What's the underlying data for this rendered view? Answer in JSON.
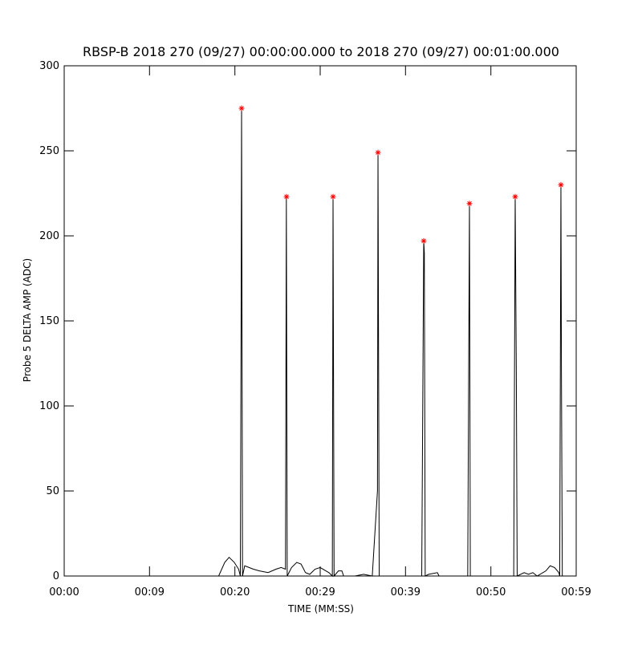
{
  "chart_data": {
    "type": "line",
    "title": "RBSP-B 2018 270 (09/27) 00:00:00.000 to 2018 270 (09/27) 00:01:00.000",
    "xlabel": "TIME (MM:SS)",
    "ylabel": "Probe 5 DELTA AMP (ADC)",
    "xlim": [
      0,
      59
    ],
    "ylim": [
      0,
      300
    ],
    "xticks": [
      {
        "value": 0,
        "label": "00:00"
      },
      {
        "value": 9.83,
        "label": "00:09"
      },
      {
        "value": 19.67,
        "label": "00:20"
      },
      {
        "value": 29.5,
        "label": "00:29"
      },
      {
        "value": 39.33,
        "label": "00:39"
      },
      {
        "value": 49.17,
        "label": "00:50"
      },
      {
        "value": 59,
        "label": "00:59"
      }
    ],
    "yticks": [
      0,
      50,
      100,
      150,
      200,
      250,
      300
    ],
    "series": [
      {
        "kind": "line",
        "color": "#000000",
        "x": [
          0,
          17.8,
          18.5,
          19.0,
          19.6,
          20.1,
          20.3,
          20.4,
          20.44,
          20.55,
          20.8,
          21.3,
          21.8,
          22.5,
          23.5,
          24.4,
          25.0,
          25.5,
          25.6,
          25.7,
          26.2,
          26.8,
          27.3,
          27.8,
          28.3,
          28.9,
          29.5,
          30.5,
          30.9,
          30.98,
          31.1,
          31.6,
          32.0,
          32.2,
          33.5,
          34.5,
          35.5,
          36.1,
          36.16,
          36.3,
          40.5,
          41.2,
          41.43,
          41.5,
          41.6,
          42.0,
          43.0,
          43.2,
          46.5,
          46.7,
          46.8,
          51.8,
          51.97,
          52.1,
          52.2,
          53.0,
          53.5,
          54.0,
          54.5,
          55.5,
          56.0,
          56.5,
          57.0,
          57.1,
          57.24,
          57.3,
          57.4
        ],
        "values": [
          0,
          0,
          8,
          11,
          8,
          4,
          0,
          180,
          275,
          0,
          6,
          5,
          4,
          3,
          2,
          4,
          5,
          4,
          223,
          0,
          5,
          8,
          7,
          2,
          1,
          4,
          5,
          2,
          0,
          223,
          0,
          3,
          3,
          0,
          0,
          1,
          0,
          50,
          249,
          0,
          0,
          0,
          197,
          190,
          0,
          1,
          2,
          0,
          0,
          219,
          0,
          0,
          223,
          120,
          0,
          2,
          1,
          2,
          0,
          3,
          6,
          5,
          2,
          0,
          230,
          120,
          0
        ]
      },
      {
        "kind": "star",
        "color": "#ff0000",
        "x": [
          20.44,
          25.62,
          30.98,
          36.16,
          41.43,
          46.7,
          51.97,
          57.24
        ],
        "values": [
          275,
          223,
          223,
          249,
          197,
          219,
          223,
          230
        ]
      }
    ]
  }
}
